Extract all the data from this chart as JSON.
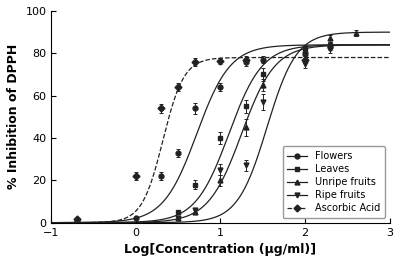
{
  "title": "",
  "xlabel": "Log[Concentration (μg/ml)]",
  "ylabel": "% Inhibition of DPPH",
  "xlim": [
    -1,
    3
  ],
  "ylim": [
    0,
    100
  ],
  "xticks": [
    -1,
    0,
    1,
    2,
    3
  ],
  "yticks": [
    0,
    20,
    40,
    60,
    80,
    100
  ],
  "series": [
    {
      "label": "Flowers",
      "marker": "o",
      "linestyle": "-",
      "color": "#222222",
      "ec50": 0.72,
      "hill": 2.2,
      "top": 84,
      "bottom": 0,
      "x_data": [
        -0.7,
        0.0,
        0.3,
        0.5,
        0.7,
        1.0,
        1.3,
        1.5,
        2.0,
        2.3
      ],
      "y_data": [
        1.0,
        2.0,
        22.0,
        33.0,
        54.0,
        64.0,
        76.0,
        77.0,
        80.0,
        83.0
      ],
      "yerr": [
        0.5,
        0.5,
        2.0,
        2.0,
        2.5,
        2.0,
        2.0,
        1.5,
        1.5,
        1.5
      ]
    },
    {
      "label": "Leaves",
      "marker": "s",
      "linestyle": "-",
      "color": "#222222",
      "ec50": 1.1,
      "hill": 2.2,
      "top": 84,
      "bottom": 0,
      "x_data": [
        0.5,
        0.7,
        1.0,
        1.3,
        1.5,
        2.0,
        2.3
      ],
      "y_data": [
        5.0,
        18.0,
        40.0,
        55.0,
        70.0,
        82.0,
        84.0
      ],
      "yerr": [
        1.0,
        2.0,
        3.0,
        3.0,
        3.0,
        2.0,
        1.5
      ]
    },
    {
      "label": "Unripe fruits",
      "marker": "^",
      "linestyle": "-",
      "color": "#222222",
      "ec50": 1.55,
      "hill": 2.5,
      "top": 90,
      "bottom": 0,
      "x_data": [
        0.5,
        0.7,
        1.0,
        1.3,
        1.5,
        2.0,
        2.3,
        2.6
      ],
      "y_data": [
        2.0,
        5.0,
        20.0,
        45.0,
        65.0,
        80.0,
        87.0,
        89.5
      ],
      "yerr": [
        0.5,
        1.0,
        2.5,
        4.0,
        3.0,
        2.0,
        1.5,
        1.5
      ]
    },
    {
      "label": "Ripe fruits",
      "marker": "v",
      "linestyle": "-",
      "color": "#222222",
      "ec50": 1.25,
      "hill": 2.2,
      "top": 84,
      "bottom": 0,
      "x_data": [
        0.5,
        0.7,
        1.0,
        1.3,
        1.5,
        2.0,
        2.3
      ],
      "y_data": [
        2.0,
        6.0,
        25.0,
        27.0,
        57.0,
        75.0,
        82.0
      ],
      "yerr": [
        0.5,
        1.0,
        2.5,
        2.5,
        4.0,
        2.0,
        2.0
      ]
    },
    {
      "label": "Ascorbic Acid",
      "marker": "D",
      "linestyle": "--",
      "color": "#222222",
      "ec50": 0.32,
      "hill": 3.5,
      "top": 78,
      "bottom": 0,
      "x_data": [
        -0.7,
        0.0,
        0.3,
        0.5,
        0.7,
        1.0,
        1.3,
        2.0
      ],
      "y_data": [
        1.5,
        22.0,
        54.0,
        64.0,
        76.0,
        76.5,
        77.0,
        77.0
      ],
      "yerr": [
        0.5,
        2.0,
        2.0,
        2.0,
        2.0,
        1.5,
        1.5,
        1.5
      ]
    }
  ],
  "background_color": "#ffffff",
  "legend_loc": "lower right",
  "fontsize_labels": 9,
  "fontsize_ticks": 8
}
